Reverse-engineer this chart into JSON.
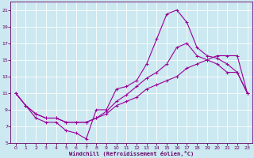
{
  "background_color": "#cce8f0",
  "line_color": "#990099",
  "marker": "+",
  "xlabel": "Windchill (Refroidissement éolien,°C)",
  "xlabel_color": "#660066",
  "tick_color": "#660066",
  "grid_color": "#ffffff",
  "xlim": [
    -0.5,
    23.5
  ],
  "ylim": [
    5,
    22
  ],
  "xticks": [
    0,
    1,
    2,
    3,
    4,
    5,
    6,
    7,
    8,
    9,
    10,
    11,
    12,
    13,
    14,
    15,
    16,
    17,
    18,
    19,
    20,
    21,
    22,
    23
  ],
  "yticks": [
    5,
    7,
    9,
    11,
    13,
    15,
    17,
    19,
    21
  ],
  "line1_x": [
    0,
    1,
    2,
    3,
    4,
    5,
    6,
    7,
    8,
    9,
    10,
    11,
    12,
    13,
    14,
    15,
    16,
    17,
    18,
    19,
    20,
    21,
    22,
    23
  ],
  "line1_y": [
    11.0,
    9.5,
    8.0,
    7.5,
    7.5,
    6.5,
    6.2,
    5.5,
    9.0,
    9.0,
    11.5,
    11.8,
    12.5,
    14.5,
    17.5,
    20.5,
    21.0,
    19.5,
    16.5,
    15.5,
    15.2,
    14.5,
    13.5,
    11.0
  ],
  "line2_x": [
    0,
    1,
    2,
    3,
    4,
    5,
    6,
    7,
    8,
    9,
    10,
    11,
    12,
    13,
    14,
    15,
    16,
    17,
    18,
    19,
    20,
    21,
    22,
    23
  ],
  "line2_y": [
    11.0,
    9.5,
    8.5,
    8.0,
    8.0,
    7.5,
    7.5,
    7.5,
    8.0,
    8.5,
    9.5,
    10.0,
    10.5,
    11.5,
    12.0,
    12.5,
    13.0,
    14.0,
    14.5,
    15.0,
    15.5,
    15.5,
    15.5,
    11.0
  ],
  "line3_x": [
    0,
    1,
    2,
    3,
    4,
    5,
    6,
    7,
    8,
    9,
    10,
    11,
    12,
    13,
    14,
    15,
    16,
    17,
    18,
    19,
    20,
    21,
    22,
    23
  ],
  "line3_y": [
    11.0,
    9.5,
    8.5,
    8.0,
    8.0,
    7.5,
    7.5,
    7.5,
    8.0,
    8.8,
    10.0,
    10.8,
    11.8,
    12.8,
    13.5,
    14.5,
    16.5,
    17.0,
    15.5,
    15.0,
    14.5,
    13.5,
    13.5,
    11.0
  ]
}
